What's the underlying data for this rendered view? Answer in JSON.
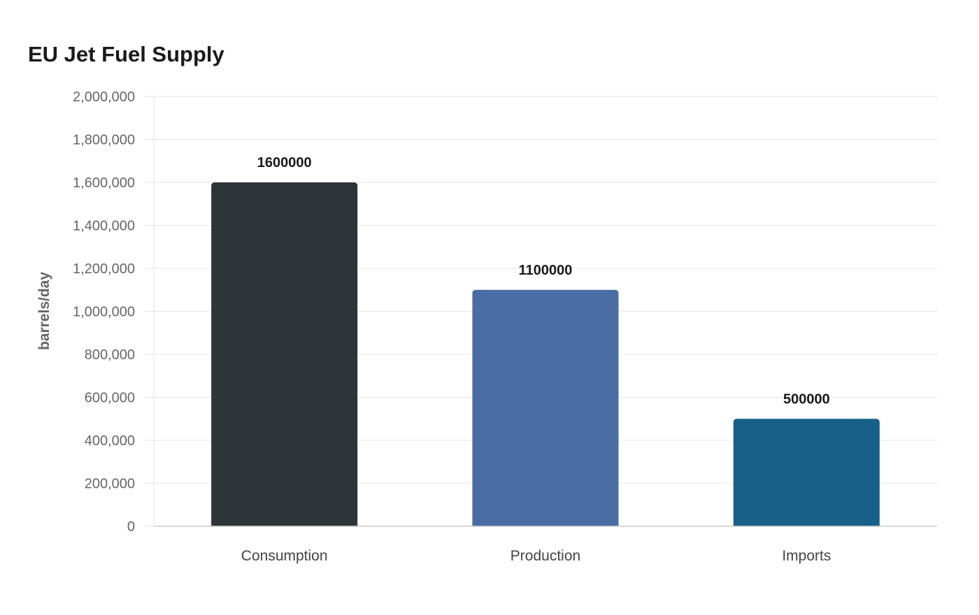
{
  "chart_data": {
    "type": "bar",
    "title": "EU Jet Fuel Supply",
    "xlabel": "",
    "ylabel": "barrels/day",
    "categories": [
      "Consumption",
      "Production",
      "Imports"
    ],
    "values": [
      1600000,
      1100000,
      500000
    ],
    "data_labels": [
      "1600000",
      "1100000",
      "500000"
    ],
    "colors": [
      "#2e3538",
      "#4a6ea3",
      "#176087"
    ],
    "ylim": [
      0,
      2000000
    ],
    "yticks": [
      0,
      200000,
      400000,
      600000,
      800000,
      1000000,
      1200000,
      1400000,
      1600000,
      1800000,
      2000000
    ],
    "ytick_labels": [
      "0",
      "200,000",
      "400,000",
      "600,000",
      "800,000",
      "1,000,000",
      "1,200,000",
      "1,400,000",
      "1,600,000",
      "1,800,000",
      "2,000,000"
    ],
    "grid": true,
    "legend": "none"
  }
}
